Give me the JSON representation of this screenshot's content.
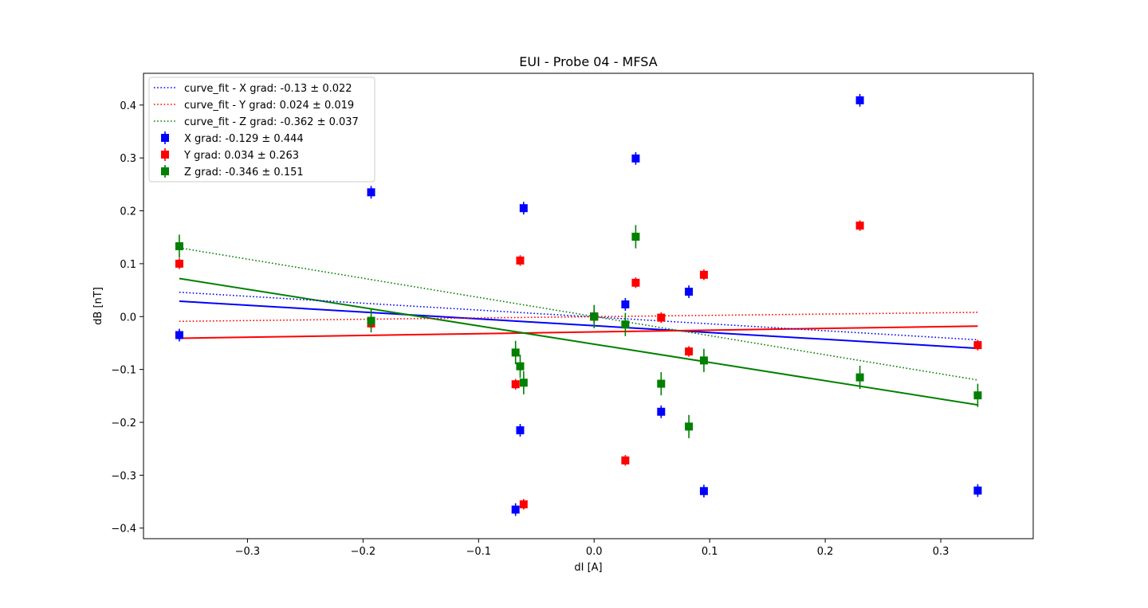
{
  "chart_data": {
    "type": "scatter",
    "title": "EUI - Probe 04 - MFSA",
    "xlabel": "dI [A]",
    "ylabel": "dB [nT]",
    "xlim": [
      -0.39,
      0.38
    ],
    "ylim": [
      -0.42,
      0.46
    ],
    "xticks": [
      -0.3,
      -0.2,
      -0.1,
      0.0,
      0.1,
      0.2,
      0.3
    ],
    "xtick_labels": [
      "−0.3",
      "−0.2",
      "−0.1",
      "0.0",
      "0.1",
      "0.2",
      "0.3"
    ],
    "yticks": [
      -0.4,
      -0.3,
      -0.2,
      -0.1,
      0.0,
      0.1,
      0.2,
      0.3,
      0.4
    ],
    "ytick_labels": [
      "−0.4",
      "−0.3",
      "−0.2",
      "−0.1",
      "0.0",
      "0.1",
      "0.2",
      "0.3",
      "0.4"
    ],
    "grid": false,
    "legend_position": "top-left",
    "series": [
      {
        "name": "X grad: -0.129 ± 0.444",
        "color": "#0000ff",
        "x": [
          -0.359,
          -0.193,
          -0.068,
          -0.064,
          -0.061,
          0.0,
          0.027,
          0.036,
          0.058,
          0.082,
          0.095,
          0.23,
          0.332
        ],
        "y": [
          -0.035,
          0.235,
          -0.365,
          -0.215,
          0.205,
          0.0,
          0.023,
          0.299,
          -0.18,
          0.047,
          -0.33,
          0.409,
          -0.329
        ],
        "yerr": 0.012,
        "fit": {
          "x": [
            -0.359,
            0.332
          ],
          "y": [
            0.029,
            -0.06
          ]
        }
      },
      {
        "name": "Y grad: 0.034 ± 0.263",
        "color": "#ff0000",
        "x": [
          -0.359,
          -0.193,
          -0.068,
          -0.064,
          -0.061,
          0.0,
          0.027,
          0.036,
          0.058,
          0.082,
          0.095,
          0.23,
          0.332
        ],
        "y": [
          0.1,
          -0.013,
          -0.128,
          0.106,
          -0.355,
          0.0,
          -0.272,
          0.064,
          -0.002,
          -0.066,
          0.079,
          0.172,
          -0.054
        ],
        "yerr": 0.01,
        "fit": {
          "x": [
            -0.359,
            0.332
          ],
          "y": [
            -0.041,
            -0.018
          ]
        }
      },
      {
        "name": "Z grad: -0.346 ± 0.151",
        "color": "#008000",
        "x": [
          -0.359,
          -0.193,
          -0.068,
          -0.064,
          -0.061,
          0.0,
          0.027,
          0.036,
          0.058,
          0.082,
          0.095,
          0.23,
          0.332
        ],
        "y": [
          0.133,
          -0.008,
          -0.068,
          -0.094,
          -0.125,
          0.0,
          -0.015,
          0.151,
          -0.127,
          -0.208,
          -0.083,
          -0.115,
          -0.149
        ],
        "yerr": 0.022,
        "fit": {
          "x": [
            -0.359,
            0.332
          ],
          "y": [
            0.072,
            -0.167
          ]
        }
      }
    ],
    "curve_fits": [
      {
        "name": "curve_fit - X grad: -0.13 ± 0.022",
        "color": "#0000ff",
        "x": [
          -0.359,
          0.332
        ],
        "y": [
          0.046,
          -0.044
        ]
      },
      {
        "name": "curve_fit - Y grad: 0.024 ± 0.019",
        "color": "#ff0000",
        "x": [
          -0.359,
          0.332
        ],
        "y": [
          -0.009,
          0.008
        ]
      },
      {
        "name": "curve_fit - Z grad: -0.362 ± 0.037",
        "color": "#008000",
        "x": [
          -0.359,
          0.332
        ],
        "y": [
          0.13,
          -0.12
        ]
      }
    ]
  }
}
